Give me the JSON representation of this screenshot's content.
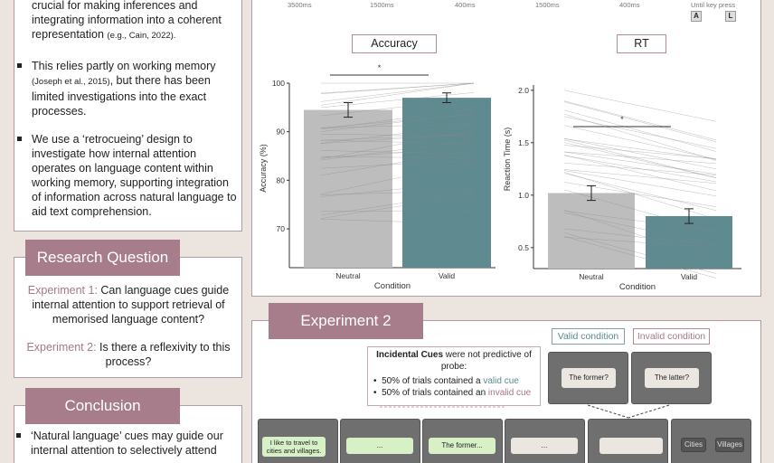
{
  "left": {
    "intro_text_line1": "crucial for making inferences and",
    "intro_text_line2": "integrating information into a coherent",
    "intro_text_line3": "representation",
    "intro_cite": "(e.g., Cain, 2022).",
    "bullet1_pre": "This relies partly on working memory",
    "bullet1_cite": "(Joseph et al., 2015)",
    "bullet1_post1": ", but there has been",
    "bullet1_post2": "limited investigations into the exact",
    "bullet1_post3": "processes.",
    "bullet2_l1": "We use a ‘retrocueing’ design to",
    "bullet2_l2": "investigate how internal attention",
    "bullet2_l3": "operates on language content within",
    "bullet2_l4": "working memory, supporting integration",
    "bullet2_l5": "of information across natural language to",
    "bullet2_l6": "aid text comprehension.",
    "rq_title": "Research Question",
    "exp1_label": "Experiment 1:",
    "exp1_l1": " Can language cues guide",
    "exp1_l2": "internal attention to support retrieval of",
    "exp1_l3": "memorised language content?",
    "exp2_label": "Experiment 2:",
    "exp2_l1": " Is there a reflexivity to this",
    "exp2_l2": "process?",
    "conclusion_title": "Conclusion",
    "concl_l1": "‘Natural language’ cues may guide our",
    "concl_l2": "internal attention to selectively attend"
  },
  "top_timeline": {
    "t1": "3500ms",
    "t2": "1500ms",
    "t3": "400ms",
    "t4": "1500ms",
    "t5": "400ms",
    "until": "Until key press",
    "key_a": "A",
    "key_l": "L"
  },
  "chart_data": [
    {
      "type": "bar",
      "title": "Accuracy",
      "categories": [
        "Neutral",
        "Valid"
      ],
      "values": [
        94.5,
        97
      ],
      "errors": [
        1.5,
        1.0
      ],
      "xlabel": "Condition",
      "ylabel": "Accuracy (%)",
      "ylim": [
        62,
        100
      ],
      "yticks": [
        70,
        80,
        90,
        100
      ],
      "significance": "*",
      "colors": [
        "#bdbdbd",
        "#5e8a90"
      ]
    },
    {
      "type": "bar",
      "title": "RT",
      "categories": [
        "Neutral",
        "Valid"
      ],
      "values": [
        1.02,
        0.8
      ],
      "errors": [
        0.07,
        0.07
      ],
      "xlabel": "Condition",
      "ylabel": "Reaction Time (s)",
      "ylim": [
        0.3,
        2.05
      ],
      "yticks": [
        0.5,
        1.0,
        1.5,
        2.0
      ],
      "ytick_labels": [
        "0.5",
        "1.0",
        "1.5",
        "2.0"
      ],
      "significance": "*",
      "colors": [
        "#bdbdbd",
        "#5e8a90"
      ]
    }
  ],
  "exp2": {
    "title": "Experiment 2",
    "valid_cond": "Valid condition",
    "invalid_cond": "Invalid condition",
    "cue_bold": "Incidental Cues",
    "cue_rest1": " were not predictive of",
    "cue_rest2": "probe:",
    "cue_b1_pre": "50% of trials contained a ",
    "cue_b1_hl": "valid cue",
    "cue_b2_pre": "50% of trials contained an ",
    "cue_b2_hl": "invalid cue",
    "former": "The former?",
    "latter": "The latter?",
    "seq1": "I like to travel to cities and villages.",
    "seq2": "...",
    "seq3": "The former...",
    "seq4": "...",
    "opt1": "Cities",
    "opt2": "Villages"
  },
  "colors": {
    "mauve": "#a77d8c",
    "teal": "#5e8a90",
    "bar_grey": "#bdbdbd",
    "background": "#ece4de"
  }
}
